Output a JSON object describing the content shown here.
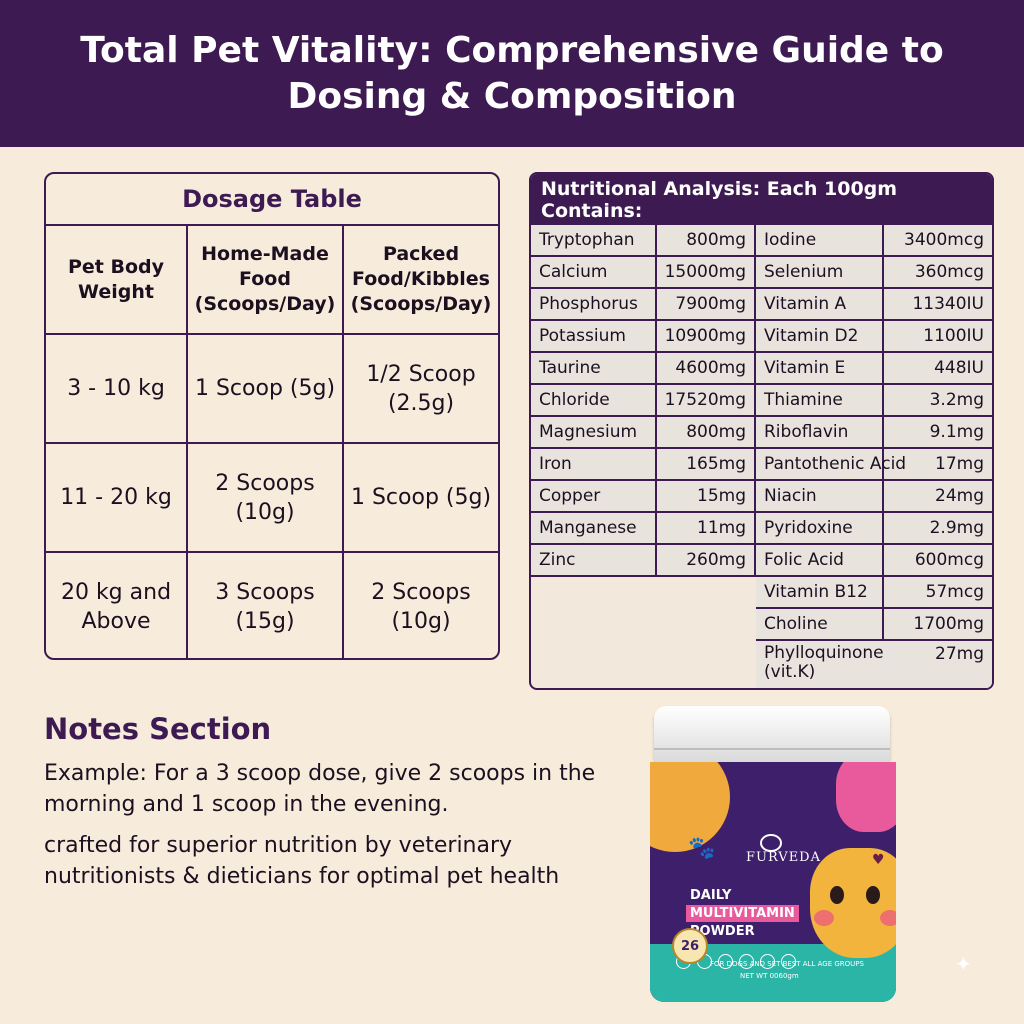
{
  "header": {
    "title": "Total Pet Vitality: Comprehensive Guide to Dosing & Composition"
  },
  "dosage": {
    "title": "Dosage Table",
    "columns": [
      "Pet Body Weight",
      "Home-Made Food (Scoops/Day)",
      "Packed Food/Kibbles (Scoops/Day)"
    ],
    "rows": [
      [
        "3 - 10 kg",
        "1 Scoop (5g)",
        "1/2 Scoop (2.5g)"
      ],
      [
        "11 - 20 kg",
        "2 Scoops (10g)",
        "1 Scoop (5g)"
      ],
      [
        "20 kg and Above",
        "3 Scoops (15g)",
        "2 Scoops (10g)"
      ]
    ]
  },
  "nutrition": {
    "title": "Nutritional Analysis: Each 100gm Contains:",
    "left": [
      {
        "name": "Tryptophan",
        "amount": "800mg"
      },
      {
        "name": "Calcium",
        "amount": "15000mg"
      },
      {
        "name": "Phosphorus",
        "amount": "7900mg"
      },
      {
        "name": "Potassium",
        "amount": "10900mg"
      },
      {
        "name": "Taurine",
        "amount": "4600mg"
      },
      {
        "name": "Chloride",
        "amount": "17520mg"
      },
      {
        "name": "Magnesium",
        "amount": "800mg"
      },
      {
        "name": "Iron",
        "amount": "165mg"
      },
      {
        "name": "Copper",
        "amount": "15mg"
      },
      {
        "name": "Manganese",
        "amount": "11mg"
      },
      {
        "name": "Zinc",
        "amount": "260mg"
      }
    ],
    "right": [
      {
        "name": "Iodine",
        "amount": "3400mcg"
      },
      {
        "name": "Selenium",
        "amount": "360mcg"
      },
      {
        "name": "Vitamin A",
        "amount": "11340IU"
      },
      {
        "name": "Vitamin D2",
        "amount": "1100IU"
      },
      {
        "name": "Vitamin E",
        "amount": "448IU"
      },
      {
        "name": "Thiamine",
        "amount": "3.2mg"
      },
      {
        "name": "Riboflavin",
        "amount": "9.1mg"
      },
      {
        "name": "Pantothenic Acid",
        "amount": "17mg"
      },
      {
        "name": "Niacin",
        "amount": "24mg"
      },
      {
        "name": "Pyridoxine",
        "amount": "2.9mg"
      },
      {
        "name": "Folic Acid",
        "amount": "600mcg"
      },
      {
        "name": "Vitamin B12",
        "amount": "57mcg"
      },
      {
        "name": "Choline",
        "amount": "1700mg"
      },
      {
        "name": "Phylloquinone (vit.K)",
        "amount": "27mg"
      }
    ]
  },
  "notes": {
    "title": "Notes Section",
    "example": "Example: For a 3 scoop dose, give 2 scoops in the morning and 1 scoop in the evening.",
    "crafted": "crafted for superior nutrition by veterinary nutritionists & dieticians for optimal pet health"
  },
  "product": {
    "brand": "FURVEDA",
    "line1": "DAILY",
    "line2": "MULTIVITAMIN",
    "line3": "POWDER",
    "badge": "26",
    "fine1": "FOR DOGS AND SET BEST ALL AGE GROUPS",
    "fine2": "NET WT 0060gm",
    "colors": {
      "jar": "#3d1f6b",
      "orange": "#f0a93d",
      "pink": "#e85a9b",
      "teal": "#2bb5a7"
    }
  }
}
